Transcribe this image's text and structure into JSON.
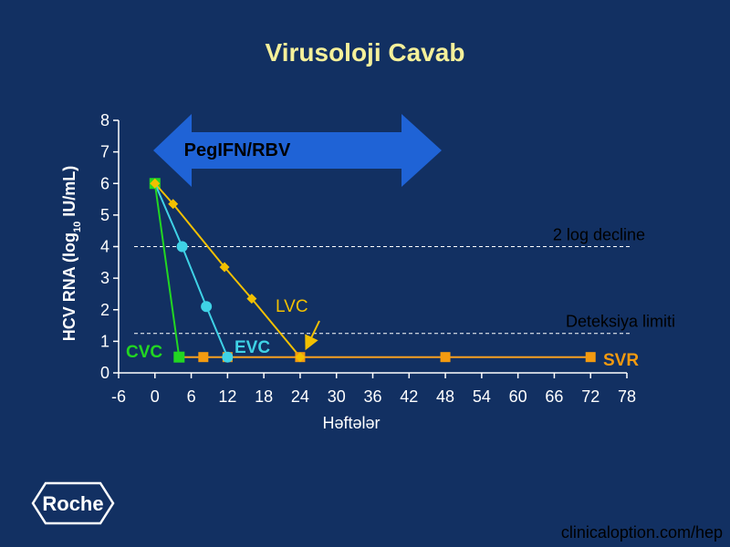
{
  "slide": {
    "title": "Virusoloji Cavab",
    "logo_text": "Roche",
    "source": "clinicaloption.com/hep"
  },
  "colors": {
    "background": "#123062",
    "title": "#f5f09a",
    "axis": "#ffffff",
    "arrow": "#1f63d6",
    "cvc": "#22d622",
    "evc": "#3fd2e6",
    "lvc": "#f2c000",
    "svr": "#f39a10",
    "svr_line": "#f7a020"
  },
  "chart_data": {
    "type": "line",
    "xlabel": "Həftələr",
    "ylabel": "HCV RNA (log10 IU/mL)",
    "x_ticks": [
      -6,
      0,
      6,
      12,
      18,
      24,
      30,
      36,
      42,
      48,
      54,
      60,
      66,
      72,
      78
    ],
    "y_ticks": [
      0,
      1,
      2,
      3,
      4,
      5,
      6,
      7,
      8
    ],
    "xlim": [
      -6,
      78
    ],
    "ylim": [
      0,
      8
    ],
    "grid": false,
    "treatment_arrow": {
      "label": "PegIFN/RBV"
    },
    "reference_lines": [
      {
        "label": "2 log decline",
        "y": 4.0
      },
      {
        "label": "Deteksiya limiti",
        "y": 1.25
      }
    ],
    "series": [
      {
        "name": "CVC",
        "color_key": "cvc",
        "marker": "square",
        "points": [
          [
            0,
            6.0
          ],
          [
            4,
            0.5
          ]
        ]
      },
      {
        "name": "EVC",
        "color_key": "evc",
        "marker": "circle",
        "points": [
          [
            0,
            6.0
          ],
          [
            4.5,
            4.0
          ],
          [
            8.5,
            2.1
          ],
          [
            12,
            0.5
          ]
        ]
      },
      {
        "name": "LVC",
        "color_key": "lvc",
        "marker": "diamond",
        "points": [
          [
            0,
            6.0
          ],
          [
            3,
            5.35
          ],
          [
            11.5,
            3.35
          ],
          [
            16,
            2.35
          ],
          [
            24,
            0.5
          ]
        ]
      },
      {
        "name": "SVR",
        "color_key": "svr",
        "marker": "square",
        "points": [
          [
            4,
            0.5
          ],
          [
            8,
            0.5
          ],
          [
            12,
            0.5
          ],
          [
            24,
            0.5
          ],
          [
            48,
            0.5
          ],
          [
            72,
            0.5
          ]
        ]
      }
    ]
  }
}
